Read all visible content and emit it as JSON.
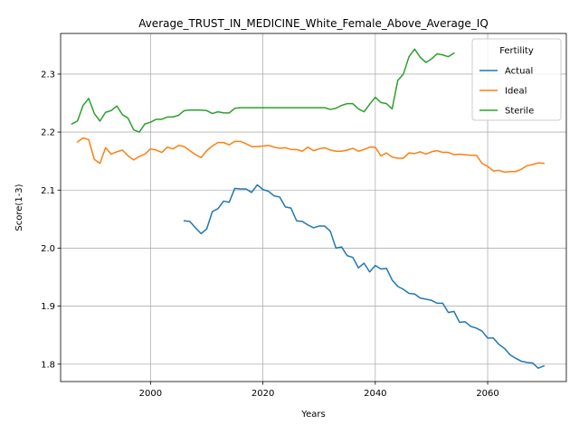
{
  "chart_data": {
    "type": "line",
    "title": "Average_TRUST_IN_MEDICINE_White_Female_Above_Average_IQ",
    "xlabel": "Years",
    "ylabel": "Score(1-3)",
    "xlim": [
      1984,
      2074
    ],
    "ylim": [
      1.77,
      2.37
    ],
    "xticks": [
      2000,
      2020,
      2040,
      2060
    ],
    "yticks": [
      1.8,
      1.9,
      2.0,
      2.1,
      2.2,
      2.3
    ],
    "ytick_labels": [
      "1.8",
      "1.9",
      "2.0",
      "2.1",
      "2.2",
      "2.3"
    ],
    "grid": true,
    "legend": {
      "title": "Fertility",
      "placement": "top-right"
    },
    "series": [
      {
        "name": "Actual",
        "color": "#1f77b4",
        "x": [
          2006,
          2007,
          2008,
          2009,
          2010,
          2011,
          2012,
          2013,
          2014,
          2015,
          2016,
          2017,
          2018,
          2019,
          2020,
          2021,
          2022,
          2023,
          2024,
          2025,
          2026,
          2027,
          2028,
          2029,
          2030,
          2031,
          2032,
          2033,
          2034,
          2035,
          2036,
          2037,
          2038,
          2039,
          2040,
          2041,
          2042,
          2043,
          2044,
          2045,
          2046,
          2047,
          2048,
          2049,
          2050,
          2051,
          2052,
          2053,
          2054,
          2055,
          2056,
          2057,
          2058,
          2059,
          2060,
          2061,
          2062,
          2063,
          2064,
          2065,
          2066,
          2067,
          2068,
          2069,
          2070
        ],
        "values": [
          2.047,
          2.046,
          2.035,
          2.025,
          2.033,
          2.063,
          2.068,
          2.081,
          2.079,
          2.103,
          2.102,
          2.102,
          2.096,
          2.109,
          2.101,
          2.098,
          2.09,
          2.088,
          2.071,
          2.069,
          2.047,
          2.046,
          2.04,
          2.035,
          2.038,
          2.038,
          2.029,
          2.0,
          2.002,
          1.987,
          1.984,
          1.966,
          1.974,
          1.959,
          1.97,
          1.964,
          1.965,
          1.945,
          1.934,
          1.929,
          1.922,
          1.921,
          1.914,
          1.912,
          1.91,
          1.905,
          1.905,
          1.889,
          1.891,
          1.872,
          1.873,
          1.865,
          1.862,
          1.857,
          1.845,
          1.845,
          1.834,
          1.827,
          1.816,
          1.81,
          1.805,
          1.803,
          1.802,
          1.793,
          1.797
        ]
      },
      {
        "name": "Ideal",
        "color": "#ff7f0e",
        "x": [
          1987,
          1988,
          1989,
          1990,
          1991,
          1992,
          1993,
          1994,
          1995,
          1996,
          1997,
          1998,
          1999,
          2000,
          2001,
          2002,
          2003,
          2004,
          2005,
          2006,
          2007,
          2008,
          2009,
          2010,
          2011,
          2012,
          2013,
          2014,
          2015,
          2016,
          2017,
          2018,
          2019,
          2020,
          2021,
          2022,
          2023,
          2024,
          2025,
          2026,
          2027,
          2028,
          2029,
          2030,
          2031,
          2032,
          2033,
          2034,
          2035,
          2036,
          2037,
          2038,
          2039,
          2040,
          2041,
          2042,
          2043,
          2044,
          2045,
          2046,
          2047,
          2048,
          2049,
          2050,
          2051,
          2052,
          2053,
          2054,
          2055,
          2056,
          2057,
          2058,
          2059,
          2060,
          2061,
          2062,
          2063,
          2064,
          2065,
          2066,
          2067,
          2068,
          2069,
          2070
        ],
        "values": [
          2.183,
          2.19,
          2.187,
          2.153,
          2.146,
          2.173,
          2.162,
          2.166,
          2.169,
          2.159,
          2.152,
          2.158,
          2.162,
          2.171,
          2.169,
          2.165,
          2.174,
          2.171,
          2.177,
          2.175,
          2.168,
          2.161,
          2.156,
          2.168,
          2.176,
          2.182,
          2.182,
          2.178,
          2.184,
          2.184,
          2.18,
          2.175,
          2.175,
          2.176,
          2.177,
          2.174,
          2.172,
          2.173,
          2.17,
          2.17,
          2.167,
          2.174,
          2.168,
          2.171,
          2.173,
          2.169,
          2.167,
          2.167,
          2.169,
          2.172,
          2.167,
          2.17,
          2.174,
          2.174,
          2.159,
          2.164,
          2.157,
          2.155,
          2.155,
          2.164,
          2.163,
          2.166,
          2.162,
          2.166,
          2.168,
          2.165,
          2.165,
          2.161,
          2.162,
          2.161,
          2.16,
          2.16,
          2.146,
          2.141,
          2.133,
          2.134,
          2.131,
          2.132,
          2.132,
          2.136,
          2.142,
          2.144,
          2.147,
          2.146
        ]
      },
      {
        "name": "Sterile",
        "color": "#2ca02c",
        "x": [
          1986,
          1987,
          1988,
          1989,
          1990,
          1991,
          1992,
          1993,
          1994,
          1995,
          1996,
          1997,
          1998,
          1999,
          2000,
          2001,
          2002,
          2003,
          2004,
          2005,
          2006,
          2007,
          2008,
          2009,
          2010,
          2011,
          2012,
          2013,
          2014,
          2015,
          2016,
          2017,
          2018,
          2019,
          2020,
          2021,
          2022,
          2023,
          2024,
          2025,
          2026,
          2027,
          2028,
          2029,
          2030,
          2031,
          2032,
          2033,
          2034,
          2035,
          2036,
          2037,
          2038,
          2039,
          2040,
          2041,
          2042,
          2043,
          2044,
          2045,
          2046,
          2047,
          2048,
          2049,
          2050,
          2051,
          2052,
          2053,
          2054
        ],
        "values": [
          2.214,
          2.219,
          2.246,
          2.258,
          2.232,
          2.219,
          2.234,
          2.237,
          2.245,
          2.23,
          2.224,
          2.204,
          2.2,
          2.214,
          2.217,
          2.222,
          2.222,
          2.226,
          2.226,
          2.229,
          2.237,
          2.238,
          2.238,
          2.238,
          2.237,
          2.232,
          2.235,
          2.233,
          2.233,
          2.241,
          2.242,
          2.242,
          2.242,
          2.242,
          2.242,
          2.242,
          2.242,
          2.242,
          2.242,
          2.242,
          2.242,
          2.242,
          2.242,
          2.242,
          2.242,
          2.242,
          2.239,
          2.241,
          2.246,
          2.249,
          2.249,
          2.24,
          2.235,
          2.248,
          2.26,
          2.251,
          2.249,
          2.24,
          2.289,
          2.3,
          2.33,
          2.343,
          2.329,
          2.32,
          2.326,
          2.335,
          2.333,
          2.33,
          2.336
        ]
      }
    ]
  }
}
